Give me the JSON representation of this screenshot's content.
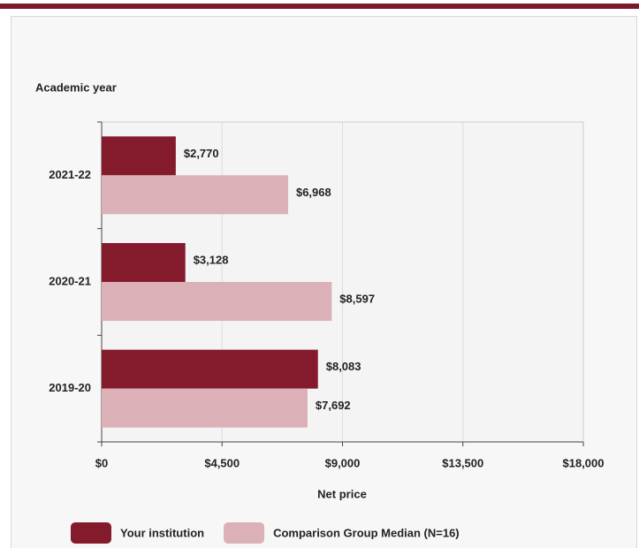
{
  "chart_data": {
    "type": "bar",
    "orientation": "horizontal",
    "y_axis_label": "Academic year",
    "x_axis_label": "Net price",
    "categories": [
      "2021-22",
      "2020-21",
      "2019-20"
    ],
    "series": [
      {
        "name": "Your institution",
        "color": "#841b2d",
        "values": [
          2770,
          3128,
          8083
        ],
        "value_labels": [
          "$2,770",
          "$3,128",
          "$8,083"
        ]
      },
      {
        "name": "Comparison Group Median (N=16)",
        "color": "#dbb0b6",
        "values": [
          6968,
          8597,
          7692
        ],
        "value_labels": [
          "$6,968",
          "$8,597",
          "$7,692"
        ]
      }
    ],
    "xlim": [
      0,
      18000
    ],
    "xticks": [
      {
        "value": 0,
        "label": "$0"
      },
      {
        "value": 4500,
        "label": "$4,500"
      },
      {
        "value": 9000,
        "label": "$9,000"
      },
      {
        "value": 13500,
        "label": "$13,500"
      },
      {
        "value": 18000,
        "label": "$18,000"
      }
    ],
    "grid": true
  }
}
